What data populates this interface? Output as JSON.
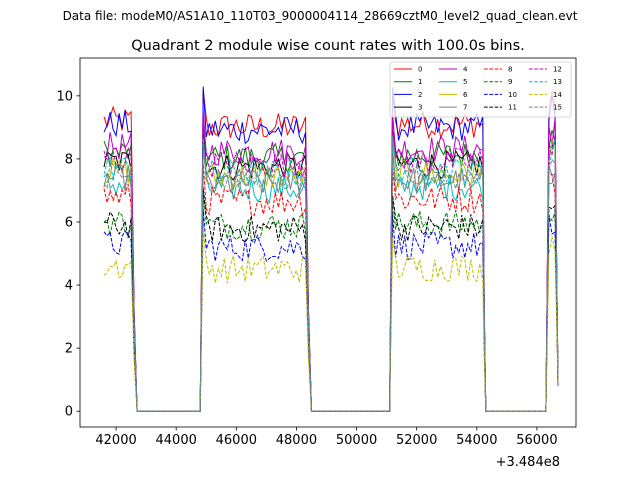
{
  "suptitle": "Data file: modeM0/AS1A10_110T03_9000004114_28669cztM0_level2_quad_clean.evt",
  "chart_data": {
    "type": "line",
    "title": "Quadrant 2 module wise count rates with 100.0s bins.",
    "xlabel": "",
    "ylabel": "",
    "xlim": [
      40800,
      57300
    ],
    "ylim": [
      -0.5,
      11.2
    ],
    "x_offset_label": "+3.484e8",
    "x_ticks": [
      42000,
      44000,
      46000,
      48000,
      50000,
      52000,
      54000,
      56000
    ],
    "x_tick_labels": [
      "42000",
      "44000",
      "46000",
      "48000",
      "50000",
      "52000",
      "54000",
      "56000"
    ],
    "y_ticks": [
      0,
      2,
      4,
      6,
      8,
      10
    ],
    "y_tick_labels": [
      "0",
      "2",
      "4",
      "6",
      "8",
      "10"
    ],
    "grid": false,
    "legend_position": "top-right",
    "legend_columns": 4,
    "series": [
      {
        "name": "0",
        "color": "#ff0000",
        "style": "solid",
        "level": 9.2
      },
      {
        "name": "1",
        "color": "#008000",
        "style": "solid",
        "level": 8.2
      },
      {
        "name": "2",
        "color": "#0000ff",
        "style": "solid",
        "level": 9.1
      },
      {
        "name": "3",
        "color": "#000000",
        "style": "solid",
        "level": 7.9
      },
      {
        "name": "4",
        "color": "#bf00bf",
        "style": "solid",
        "level": 8.4
      },
      {
        "name": "5",
        "color": "#00bfbf",
        "style": "solid",
        "level": 7.2
      },
      {
        "name": "6",
        "color": "#bfbf00",
        "style": "solid",
        "level": 7.6
      },
      {
        "name": "7",
        "color": "#808080",
        "style": "solid",
        "level": 7.4
      },
      {
        "name": "8",
        "color": "#ff0000",
        "style": "dashed",
        "level": 6.8
      },
      {
        "name": "9",
        "color": "#008000",
        "style": "dashed",
        "level": 6.0
      },
      {
        "name": "10",
        "color": "#0000ff",
        "style": "dashed",
        "level": 5.3
      },
      {
        "name": "11",
        "color": "#000000",
        "style": "dashed",
        "level": 5.9
      },
      {
        "name": "12",
        "color": "#bf00bf",
        "style": "dashed",
        "level": 8.0
      },
      {
        "name": "13",
        "color": "#00bfbf",
        "style": "dashed",
        "level": 7.7
      },
      {
        "name": "14",
        "color": "#bfbf00",
        "style": "dashed",
        "level": 4.6
      },
      {
        "name": "15",
        "color": "#808080",
        "style": "dashed",
        "level": 7.5
      }
    ],
    "segments": [
      {
        "on_start": 41600,
        "on_end": 42500,
        "drop_end": 42700,
        "off_end": 44800
      },
      {
        "on_start": 44900,
        "on_end": 48300,
        "drop_end": 48500,
        "off_end": 51100
      },
      {
        "on_start": 51200,
        "on_end": 54200,
        "drop_end": 54300,
        "off_end": 56300
      },
      {
        "on_start": 56400,
        "on_end": 56600,
        "drop_end": 56600,
        "off_end": 56600
      }
    ],
    "bin_width": 100
  }
}
